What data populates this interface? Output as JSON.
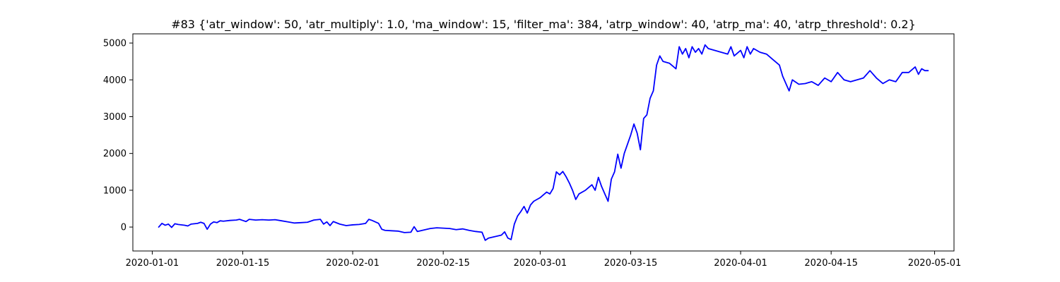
{
  "chart_data": {
    "type": "line",
    "title": "#83 {'atr_window': 50, 'atr_multiply': 1.0, 'ma_window': 15, 'filter_ma': 384, 'atrp_window': 40, 'atrp_ma': 40, 'atrp_threshold': 0.2}",
    "xlabel": "",
    "ylabel": "",
    "x_axis_type": "date",
    "xlim": [
      "2019-12-29",
      "2020-05-04"
    ],
    "ylim": [
      -650,
      5250
    ],
    "grid": false,
    "legend": "none",
    "x_ticks": [
      "2020-01-01",
      "2020-01-15",
      "2020-02-01",
      "2020-02-15",
      "2020-03-01",
      "2020-03-15",
      "2020-04-01",
      "2020-04-15",
      "2020-05-01"
    ],
    "y_ticks": [
      0,
      1000,
      2000,
      3000,
      4000,
      5000
    ],
    "series": [
      {
        "color": "#0000ff",
        "points": [
          [
            "2020-01-02",
            0
          ],
          [
            "2020-01-02T12:00",
            100
          ],
          [
            "2020-01-03",
            50
          ],
          [
            "2020-01-03T12:00",
            80
          ],
          [
            "2020-01-04",
            -10
          ],
          [
            "2020-01-04T12:00",
            90
          ],
          [
            "2020-01-05",
            70
          ],
          [
            "2020-01-06",
            50
          ],
          [
            "2020-01-06T12:00",
            30
          ],
          [
            "2020-01-07",
            80
          ],
          [
            "2020-01-08",
            100
          ],
          [
            "2020-01-08T12:00",
            130
          ],
          [
            "2020-01-09",
            100
          ],
          [
            "2020-01-09T12:00",
            -60
          ],
          [
            "2020-01-10",
            80
          ],
          [
            "2020-01-10T12:00",
            140
          ],
          [
            "2020-01-11",
            120
          ],
          [
            "2020-01-11T12:00",
            170
          ],
          [
            "2020-01-12",
            160
          ],
          [
            "2020-01-13",
            180
          ],
          [
            "2020-01-14",
            190
          ],
          [
            "2020-01-14T12:00",
            210
          ],
          [
            "2020-01-15",
            180
          ],
          [
            "2020-01-15T12:00",
            150
          ],
          [
            "2020-01-16",
            210
          ],
          [
            "2020-01-17",
            190
          ],
          [
            "2020-01-18",
            200
          ],
          [
            "2020-01-19",
            190
          ],
          [
            "2020-01-20",
            200
          ],
          [
            "2020-01-21",
            170
          ],
          [
            "2020-01-22",
            140
          ],
          [
            "2020-01-23",
            110
          ],
          [
            "2020-01-24",
            120
          ],
          [
            "2020-01-25",
            130
          ],
          [
            "2020-01-26",
            190
          ],
          [
            "2020-01-27",
            210
          ],
          [
            "2020-01-27T12:00",
            80
          ],
          [
            "2020-01-28",
            140
          ],
          [
            "2020-01-28T12:00",
            40
          ],
          [
            "2020-01-29",
            150
          ],
          [
            "2020-01-30",
            80
          ],
          [
            "2020-01-31",
            40
          ],
          [
            "2020-02-01",
            60
          ],
          [
            "2020-02-02",
            70
          ],
          [
            "2020-02-03",
            100
          ],
          [
            "2020-02-03T12:00",
            210
          ],
          [
            "2020-02-04",
            180
          ],
          [
            "2020-02-05",
            100
          ],
          [
            "2020-02-05T12:00",
            -60
          ],
          [
            "2020-02-06",
            -90
          ],
          [
            "2020-02-07",
            -100
          ],
          [
            "2020-02-08",
            -110
          ],
          [
            "2020-02-09",
            -150
          ],
          [
            "2020-02-10",
            -140
          ],
          [
            "2020-02-10T12:00",
            10
          ],
          [
            "2020-02-11",
            -120
          ],
          [
            "2020-02-12",
            -80
          ],
          [
            "2020-02-13",
            -40
          ],
          [
            "2020-02-14",
            -20
          ],
          [
            "2020-02-15",
            -30
          ],
          [
            "2020-02-16",
            -40
          ],
          [
            "2020-02-17",
            -70
          ],
          [
            "2020-02-18",
            -50
          ],
          [
            "2020-02-19",
            -90
          ],
          [
            "2020-02-20",
            -120
          ],
          [
            "2020-02-21",
            -140
          ],
          [
            "2020-02-21T12:00",
            -360
          ],
          [
            "2020-02-22",
            -300
          ],
          [
            "2020-02-24",
            -220
          ],
          [
            "2020-02-24T12:00",
            -130
          ],
          [
            "2020-02-25",
            -300
          ],
          [
            "2020-02-25T12:00",
            -340
          ],
          [
            "2020-02-26",
            80
          ],
          [
            "2020-02-26T12:00",
            300
          ],
          [
            "2020-02-27",
            420
          ],
          [
            "2020-02-27T12:00",
            560
          ],
          [
            "2020-02-28",
            380
          ],
          [
            "2020-02-28T12:00",
            600
          ],
          [
            "2020-02-29",
            700
          ],
          [
            "2020-03-01",
            800
          ],
          [
            "2020-03-02",
            950
          ],
          [
            "2020-03-02T12:00",
            900
          ],
          [
            "2020-03-03",
            1050
          ],
          [
            "2020-03-03T12:00",
            1500
          ],
          [
            "2020-03-04",
            1420
          ],
          [
            "2020-03-04T12:00",
            1510
          ],
          [
            "2020-03-05",
            1370
          ],
          [
            "2020-03-05T12:00",
            1200
          ],
          [
            "2020-03-06",
            1000
          ],
          [
            "2020-03-06T12:00",
            750
          ],
          [
            "2020-03-07",
            900
          ],
          [
            "2020-03-08",
            1000
          ],
          [
            "2020-03-09",
            1150
          ],
          [
            "2020-03-09T12:00",
            1000
          ],
          [
            "2020-03-10",
            1350
          ],
          [
            "2020-03-10T12:00",
            1100
          ],
          [
            "2020-03-11",
            900
          ],
          [
            "2020-03-11T12:00",
            700
          ],
          [
            "2020-03-12",
            1300
          ],
          [
            "2020-03-12T12:00",
            1500
          ],
          [
            "2020-03-13",
            1980
          ],
          [
            "2020-03-13T12:00",
            1600
          ],
          [
            "2020-03-14",
            2000
          ],
          [
            "2020-03-15",
            2500
          ],
          [
            "2020-03-15T12:00",
            2800
          ],
          [
            "2020-03-16",
            2550
          ],
          [
            "2020-03-16T12:00",
            2100
          ],
          [
            "2020-03-17",
            2950
          ],
          [
            "2020-03-17T12:00",
            3050
          ],
          [
            "2020-03-18",
            3500
          ],
          [
            "2020-03-18T12:00",
            3700
          ],
          [
            "2020-03-19",
            4400
          ],
          [
            "2020-03-19T12:00",
            4650
          ],
          [
            "2020-03-20",
            4500
          ],
          [
            "2020-03-21",
            4450
          ],
          [
            "2020-03-22",
            4300
          ],
          [
            "2020-03-22T12:00",
            4900
          ],
          [
            "2020-03-23",
            4700
          ],
          [
            "2020-03-23T12:00",
            4850
          ],
          [
            "2020-03-24",
            4600
          ],
          [
            "2020-03-24T12:00",
            4900
          ],
          [
            "2020-03-25",
            4750
          ],
          [
            "2020-03-25T12:00",
            4850
          ],
          [
            "2020-03-26",
            4700
          ],
          [
            "2020-03-26T12:00",
            4950
          ],
          [
            "2020-03-27",
            4850
          ],
          [
            "2020-03-28",
            4800
          ],
          [
            "2020-03-29",
            4750
          ],
          [
            "2020-03-30",
            4700
          ],
          [
            "2020-03-30T12:00",
            4900
          ],
          [
            "2020-03-31",
            4650
          ],
          [
            "2020-04-01",
            4800
          ],
          [
            "2020-04-01T12:00",
            4600
          ],
          [
            "2020-04-02",
            4900
          ],
          [
            "2020-04-02T12:00",
            4700
          ],
          [
            "2020-04-03",
            4850
          ],
          [
            "2020-04-04",
            4750
          ],
          [
            "2020-04-05",
            4700
          ],
          [
            "2020-04-06",
            4550
          ],
          [
            "2020-04-07",
            4400
          ],
          [
            "2020-04-07T12:00",
            4100
          ],
          [
            "2020-04-08",
            3900
          ],
          [
            "2020-04-08T12:00",
            3700
          ],
          [
            "2020-04-09",
            4000
          ],
          [
            "2020-04-10",
            3880
          ],
          [
            "2020-04-11",
            3900
          ],
          [
            "2020-04-12",
            3950
          ],
          [
            "2020-04-13",
            3850
          ],
          [
            "2020-04-14",
            4050
          ],
          [
            "2020-04-15",
            3950
          ],
          [
            "2020-04-16",
            4200
          ],
          [
            "2020-04-17",
            4000
          ],
          [
            "2020-04-18",
            3950
          ],
          [
            "2020-04-19",
            4000
          ],
          [
            "2020-04-20",
            4050
          ],
          [
            "2020-04-21",
            4250
          ],
          [
            "2020-04-22",
            4050
          ],
          [
            "2020-04-23",
            3900
          ],
          [
            "2020-04-24",
            4000
          ],
          [
            "2020-04-25",
            3950
          ],
          [
            "2020-04-26",
            4200
          ],
          [
            "2020-04-27",
            4200
          ],
          [
            "2020-04-28",
            4350
          ],
          [
            "2020-04-28T12:00",
            4150
          ],
          [
            "2020-04-29",
            4300
          ],
          [
            "2020-04-29T12:00",
            4250
          ],
          [
            "2020-04-30",
            4250
          ]
        ]
      }
    ]
  }
}
